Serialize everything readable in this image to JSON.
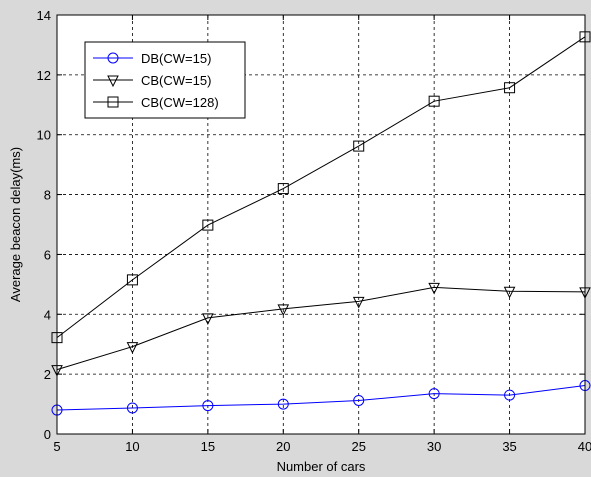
{
  "chart_data": {
    "type": "line",
    "title": "",
    "xlabel": "Number of cars",
    "ylabel": "Average beacon delay(ms)",
    "xlim": [
      5,
      40
    ],
    "ylim": [
      0,
      14
    ],
    "xticks": [
      5,
      10,
      15,
      20,
      25,
      30,
      35,
      40
    ],
    "yticks": [
      0,
      2,
      4,
      6,
      8,
      10,
      12,
      14
    ],
    "grid": true,
    "legend_position": "top-left",
    "x": [
      5,
      10,
      15,
      20,
      25,
      30,
      35,
      40
    ],
    "series": [
      {
        "name": "DB(CW=15)",
        "values": [
          0.8,
          0.87,
          0.95,
          1.0,
          1.12,
          1.35,
          1.3,
          1.62
        ],
        "color": "#0000ff",
        "marker": "circle"
      },
      {
        "name": "CB(CW=15)",
        "values": [
          2.15,
          2.92,
          3.88,
          4.18,
          4.43,
          4.9,
          4.77,
          4.75
        ],
        "color": "#000000",
        "marker": "triangle-down"
      },
      {
        "name": "CB(CW=128)",
        "values": [
          3.22,
          5.15,
          6.98,
          8.2,
          9.62,
          11.12,
          11.57,
          13.27
        ],
        "color": "#000000",
        "marker": "square"
      }
    ]
  }
}
